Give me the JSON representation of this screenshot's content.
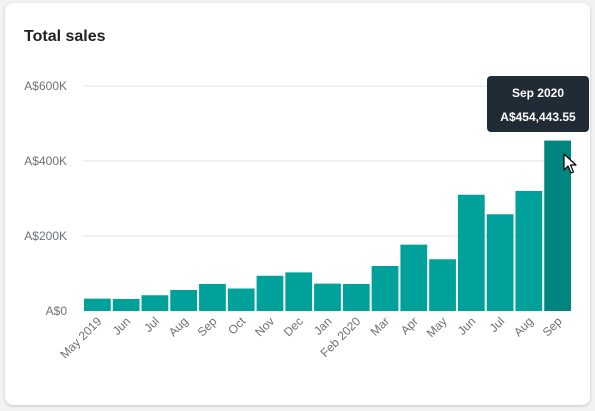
{
  "card": {
    "title": "Total sales"
  },
  "tooltip": {
    "date": "Sep 2020",
    "value": "A$454,443.55"
  },
  "colors": {
    "bar": "#00a19a",
    "bar_active": "#008580",
    "grid": "#e1e3e5"
  },
  "chart_data": {
    "type": "bar",
    "title": "Total sales",
    "xlabel": "",
    "ylabel": "",
    "ylim": [
      0,
      600000
    ],
    "yticks": [
      0,
      200000,
      400000,
      600000
    ],
    "ytick_labels": [
      "A$0",
      "A$200K",
      "A$400K",
      "A$600K"
    ],
    "categories": [
      "May 2019",
      "Jun",
      "Jul",
      "Aug",
      "Sep",
      "Oct",
      "Nov",
      "Dec",
      "Jan",
      "Feb 2020",
      "Mar",
      "Apr",
      "May",
      "Jun",
      "Jul",
      "Aug",
      "Sep"
    ],
    "values": [
      33000,
      32000,
      42000,
      56000,
      72000,
      60000,
      94000,
      103000,
      73000,
      72000,
      120000,
      177000,
      138000,
      310000,
      258000,
      320000,
      454443.55
    ],
    "highlighted_index": 16,
    "grid": true
  }
}
